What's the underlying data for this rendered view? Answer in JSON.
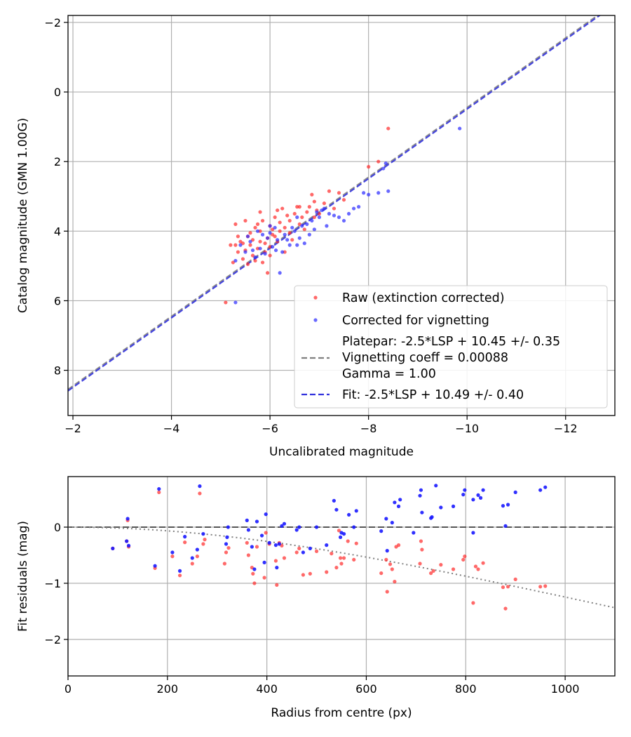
{
  "chart_data": [
    {
      "type": "scatter",
      "xlabel": "Uncalibrated magnitude",
      "ylabel": "Catalog magnitude (GMN 1.00G)",
      "xlim": [
        -1.9,
        -13.0
      ],
      "ylim": [
        9.3,
        -2.2
      ],
      "xticks": [
        -2,
        -4,
        -6,
        -8,
        -10,
        -12
      ],
      "yticks": [
        -2,
        0,
        2,
        4,
        6,
        8
      ],
      "xtick_labels": [
        "−2",
        "−4",
        "−6",
        "−8",
        "−10",
        "−12"
      ],
      "ytick_labels": [
        "−2",
        "0",
        "2",
        "4",
        "6",
        "8"
      ],
      "grid": true,
      "legend_position": "lower-right",
      "legend": {
        "raw": "Raw (extinction corrected)",
        "corrected": "Corrected for vignetting",
        "platepar_lines": [
          "Platepar: -2.5*LSP + 10.45 +/- 0.35",
          "Vignetting coeff = 0.00088",
          "Gamma = 1.00"
        ],
        "fit": "Fit: -2.5*LSP + 10.49 +/- 0.40"
      },
      "colors": {
        "raw": "#ff2a2a",
        "corrected": "#2a2aff",
        "platepar": "#808080",
        "fit": "#3333dd"
      },
      "lines": [
        {
          "name": "Platepar",
          "slope": 1.0,
          "intercept": 10.45,
          "style": "dashed"
        },
        {
          "name": "Fit",
          "slope": 1.0,
          "intercept": 10.49,
          "style": "dashed"
        }
      ],
      "raw_points": [
        [
          -5.1,
          6.05
        ],
        [
          -5.2,
          4.4
        ],
        [
          -5.25,
          4.9
        ],
        [
          -5.3,
          4.4
        ],
        [
          -5.3,
          3.8
        ],
        [
          -5.35,
          4.6
        ],
        [
          -5.4,
          4.3
        ],
        [
          -5.45,
          4.8
        ],
        [
          -5.5,
          4.55
        ],
        [
          -5.55,
          4.15
        ],
        [
          -5.6,
          4.4
        ],
        [
          -5.65,
          4.7
        ],
        [
          -5.65,
          4.25
        ],
        [
          -5.7,
          3.9
        ],
        [
          -5.75,
          4.5
        ],
        [
          -5.8,
          4.3
        ],
        [
          -5.8,
          4.0
        ],
        [
          -5.85,
          3.7
        ],
        [
          -5.9,
          4.6
        ],
        [
          -5.95,
          4.2
        ],
        [
          -6.0,
          3.85
        ],
        [
          -6.0,
          4.45
        ],
        [
          -6.05,
          4.1
        ],
        [
          -6.1,
          3.6
        ],
        [
          -6.15,
          3.4
        ],
        [
          -6.2,
          4.0
        ],
        [
          -6.25,
          3.35
        ],
        [
          -6.3,
          3.9
        ],
        [
          -6.35,
          3.55
        ],
        [
          -6.4,
          3.7
        ],
        [
          -6.45,
          4.25
        ],
        [
          -6.5,
          3.5
        ],
        [
          -6.55,
          3.3
        ],
        [
          -6.6,
          3.8
        ],
        [
          -6.7,
          3.95
        ],
        [
          -6.75,
          3.45
        ],
        [
          -6.8,
          3.3
        ],
        [
          -6.85,
          2.95
        ],
        [
          -6.9,
          3.6
        ],
        [
          -6.95,
          3.4
        ],
        [
          -7.0,
          3.5
        ],
        [
          -7.1,
          3.2
        ],
        [
          -7.2,
          2.85
        ],
        [
          -7.3,
          3.35
        ],
        [
          -7.4,
          2.9
        ],
        [
          -7.5,
          3.1
        ],
        [
          -5.5,
          3.7
        ],
        [
          -5.6,
          4.05
        ],
        [
          -5.7,
          4.85
        ],
        [
          -5.85,
          4.9
        ],
        [
          -5.9,
          4.35
        ],
        [
          -6.0,
          4.7
        ],
        [
          -6.05,
          3.95
        ],
        [
          -6.15,
          4.3
        ],
        [
          -6.2,
          3.75
        ],
        [
          -6.3,
          4.6
        ],
        [
          -5.45,
          4.35
        ],
        [
          -5.75,
          3.8
        ],
        [
          -5.95,
          5.2
        ],
        [
          -6.1,
          4.15
        ],
        [
          -8.0,
          2.15
        ],
        [
          -8.2,
          2.0
        ],
        [
          -8.4,
          1.05
        ],
        [
          -6.9,
          3.15
        ],
        [
          -6.65,
          3.6
        ],
        [
          -5.35,
          4.15
        ],
        [
          -5.55,
          4.95
        ],
        [
          -6.4,
          4.05
        ],
        [
          -6.6,
          3.3
        ],
        [
          -5.8,
          3.45
        ]
      ],
      "corrected_points": [
        [
          -5.3,
          6.05
        ],
        [
          -5.3,
          4.85
        ],
        [
          -5.4,
          4.4
        ],
        [
          -5.5,
          4.6
        ],
        [
          -5.6,
          4.3
        ],
        [
          -5.7,
          4.75
        ],
        [
          -5.75,
          4.0
        ],
        [
          -5.8,
          4.5
        ],
        [
          -5.9,
          4.65
        ],
        [
          -5.95,
          4.2
        ],
        [
          -6.0,
          4.05
        ],
        [
          -6.05,
          4.45
        ],
        [
          -6.1,
          3.9
        ],
        [
          -6.15,
          4.25
        ],
        [
          -6.2,
          5.2
        ],
        [
          -6.25,
          4.6
        ],
        [
          -6.3,
          4.1
        ],
        [
          -6.4,
          4.4
        ],
        [
          -6.5,
          4.0
        ],
        [
          -6.55,
          3.6
        ],
        [
          -6.6,
          4.2
        ],
        [
          -6.7,
          4.35
        ],
        [
          -6.75,
          3.8
        ],
        [
          -6.8,
          4.1
        ],
        [
          -6.85,
          3.7
        ],
        [
          -6.9,
          3.95
        ],
        [
          -7.0,
          3.6
        ],
        [
          -7.05,
          3.4
        ],
        [
          -7.15,
          3.85
        ],
        [
          -7.2,
          3.5
        ],
        [
          -7.3,
          3.55
        ],
        [
          -7.4,
          3.6
        ],
        [
          -7.5,
          3.7
        ],
        [
          -7.6,
          3.5
        ],
        [
          -7.7,
          3.35
        ],
        [
          -7.8,
          3.3
        ],
        [
          -7.9,
          2.9
        ],
        [
          -8.0,
          2.95
        ],
        [
          -8.2,
          2.9
        ],
        [
          -8.3,
          2.2
        ],
        [
          -8.35,
          2.05
        ],
        [
          -8.4,
          2.85
        ],
        [
          -9.85,
          1.05
        ],
        [
          -5.85,
          4.1
        ],
        [
          -6.0,
          3.85
        ],
        [
          -6.35,
          4.25
        ],
        [
          -6.45,
          3.9
        ],
        [
          -6.65,
          3.85
        ],
        [
          -6.95,
          3.45
        ],
        [
          -7.1,
          3.35
        ],
        [
          -5.65,
          4.55
        ],
        [
          -6.12,
          4.55
        ],
        [
          -6.55,
          4.4
        ],
        [
          -5.55,
          4.15
        ]
      ]
    },
    {
      "type": "scatter",
      "xlabel": "Radius from centre (px)",
      "ylabel": "Fit residuals (mag)",
      "xlim": [
        0,
        1100
      ],
      "ylim": [
        -2.65,
        0.9
      ],
      "xticks": [
        0,
        200,
        400,
        600,
        800,
        1000
      ],
      "yticks": [
        0,
        -1,
        -2
      ],
      "xtick_labels": [
        "0",
        "200",
        "400",
        "600",
        "800",
        "1000"
      ],
      "ytick_labels": [
        "0",
        "−1",
        "−2"
      ],
      "grid": true,
      "zero_line": 0,
      "vignetting_curve": {
        "coeff": 0.00088
      },
      "raw_points": [
        [
          90,
          -0.38
        ],
        [
          118,
          -0.25
        ],
        [
          120,
          0.12
        ],
        [
          122,
          -0.35
        ],
        [
          175,
          -0.73
        ],
        [
          183,
          0.62
        ],
        [
          210,
          -0.52
        ],
        [
          225,
          -0.86
        ],
        [
          235,
          -0.27
        ],
        [
          250,
          -0.65
        ],
        [
          260,
          -0.52
        ],
        [
          265,
          0.6
        ],
        [
          272,
          -0.3
        ],
        [
          275,
          -0.22
        ],
        [
          315,
          -0.65
        ],
        [
          318,
          -0.45
        ],
        [
          323,
          -0.37
        ],
        [
          360,
          -0.28
        ],
        [
          363,
          -0.5
        ],
        [
          370,
          -0.72
        ],
        [
          372,
          -0.83
        ],
        [
          375,
          -1.0
        ],
        [
          380,
          -0.35
        ],
        [
          395,
          -0.9
        ],
        [
          398,
          -0.1
        ],
        [
          405,
          -0.3
        ],
        [
          418,
          -0.6
        ],
        [
          420,
          -1.03
        ],
        [
          425,
          -0.28
        ],
        [
          430,
          -0.33
        ],
        [
          435,
          -0.55
        ],
        [
          460,
          -0.45
        ],
        [
          465,
          -0.38
        ],
        [
          473,
          -0.85
        ],
        [
          487,
          -0.83
        ],
        [
          500,
          -0.43
        ],
        [
          520,
          -0.8
        ],
        [
          530,
          -0.47
        ],
        [
          540,
          -0.72
        ],
        [
          545,
          -0.06
        ],
        [
          548,
          -0.55
        ],
        [
          550,
          -0.65
        ],
        [
          555,
          -0.55
        ],
        [
          563,
          -0.25
        ],
        [
          575,
          -0.58
        ],
        [
          580,
          -0.29
        ],
        [
          630,
          -0.82
        ],
        [
          640,
          -0.58
        ],
        [
          642,
          -1.15
        ],
        [
          648,
          -0.66
        ],
        [
          652,
          -0.75
        ],
        [
          657,
          -0.97
        ],
        [
          660,
          -0.35
        ],
        [
          665,
          -0.32
        ],
        [
          708,
          -0.65
        ],
        [
          710,
          -0.25
        ],
        [
          712,
          -0.4
        ],
        [
          730,
          -0.82
        ],
        [
          735,
          -0.78
        ],
        [
          750,
          -0.67
        ],
        [
          775,
          -0.75
        ],
        [
          795,
          -0.58
        ],
        [
          798,
          -0.52
        ],
        [
          815,
          -1.35
        ],
        [
          820,
          -0.7
        ],
        [
          825,
          -0.75
        ],
        [
          835,
          -0.64
        ],
        [
          875,
          -1.07
        ],
        [
          880,
          -1.45
        ],
        [
          885,
          -1.06
        ],
        [
          900,
          -0.93
        ],
        [
          950,
          -1.06
        ],
        [
          960,
          -1.05
        ]
      ],
      "corrected_points": [
        [
          90,
          -0.38
        ],
        [
          118,
          -0.25
        ],
        [
          120,
          0.15
        ],
        [
          122,
          -0.33
        ],
        [
          175,
          -0.69
        ],
        [
          183,
          0.68
        ],
        [
          210,
          -0.45
        ],
        [
          225,
          -0.78
        ],
        [
          235,
          -0.17
        ],
        [
          250,
          -0.55
        ],
        [
          260,
          -0.4
        ],
        [
          265,
          0.73
        ],
        [
          272,
          -0.12
        ],
        [
          318,
          -0.3
        ],
        [
          320,
          -0.18
        ],
        [
          322,
          0.0
        ],
        [
          360,
          0.12
        ],
        [
          363,
          -0.05
        ],
        [
          370,
          -0.35
        ],
        [
          375,
          -0.75
        ],
        [
          380,
          0.1
        ],
        [
          390,
          -0.15
        ],
        [
          395,
          -0.63
        ],
        [
          398,
          0.23
        ],
        [
          405,
          -0.28
        ],
        [
          418,
          -0.32
        ],
        [
          420,
          -0.72
        ],
        [
          425,
          -0.3
        ],
        [
          430,
          0.02
        ],
        [
          435,
          0.06
        ],
        [
          460,
          -0.05
        ],
        [
          465,
          0.0
        ],
        [
          473,
          -0.45
        ],
        [
          487,
          -0.38
        ],
        [
          500,
          0.0
        ],
        [
          520,
          -0.32
        ],
        [
          535,
          0.47
        ],
        [
          540,
          0.31
        ],
        [
          548,
          -0.18
        ],
        [
          550,
          -0.1
        ],
        [
          555,
          -0.12
        ],
        [
          565,
          0.22
        ],
        [
          575,
          0.0
        ],
        [
          580,
          0.29
        ],
        [
          630,
          -0.07
        ],
        [
          640,
          0.15
        ],
        [
          642,
          -0.42
        ],
        [
          652,
          0.08
        ],
        [
          657,
          0.44
        ],
        [
          665,
          0.37
        ],
        [
          668,
          0.49
        ],
        [
          695,
          -0.1
        ],
        [
          708,
          0.56
        ],
        [
          710,
          0.66
        ],
        [
          712,
          0.26
        ],
        [
          730,
          0.16
        ],
        [
          732,
          0.18
        ],
        [
          740,
          0.74
        ],
        [
          750,
          0.35
        ],
        [
          775,
          0.37
        ],
        [
          795,
          0.58
        ],
        [
          798,
          0.66
        ],
        [
          815,
          -0.1
        ],
        [
          815,
          0.49
        ],
        [
          825,
          0.57
        ],
        [
          830,
          0.52
        ],
        [
          835,
          0.66
        ],
        [
          875,
          0.38
        ],
        [
          880,
          0.02
        ],
        [
          885,
          0.4
        ],
        [
          900,
          0.62
        ],
        [
          950,
          0.66
        ],
        [
          960,
          0.71
        ]
      ]
    }
  ]
}
